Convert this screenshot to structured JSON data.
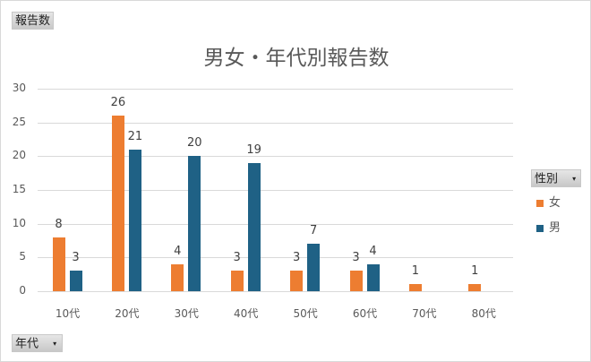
{
  "value_field_button": {
    "label": "報告数"
  },
  "axis_field_button": {
    "label": "年代",
    "arrow": "▾"
  },
  "legend_field_button": {
    "label": "性別",
    "arrow": "▾"
  },
  "colors": {
    "female": "#ED7D31",
    "male": "#1F6185",
    "grid": "#D9D9D9",
    "text": "#595959"
  },
  "legend": [
    {
      "name": "女",
      "color": "#ED7D31"
    },
    {
      "name": "男",
      "color": "#1F6185"
    }
  ],
  "chart_data": {
    "type": "bar",
    "title": "男女・年代別報告数",
    "xlabel": "",
    "ylabel": "",
    "categories": [
      "10代",
      "20代",
      "30代",
      "40代",
      "50代",
      "60代",
      "70代",
      "80代"
    ],
    "series": [
      {
        "name": "女",
        "values": [
          8,
          26,
          4,
          3,
          3,
          3,
          1,
          1
        ]
      },
      {
        "name": "男",
        "values": [
          3,
          21,
          20,
          19,
          7,
          4,
          null,
          null
        ]
      }
    ],
    "ylim": [
      0,
      30
    ],
    "yticks": [
      0,
      5,
      10,
      15,
      20,
      25,
      30
    ],
    "grid": true,
    "legend_position": "right",
    "data_labels": true
  }
}
